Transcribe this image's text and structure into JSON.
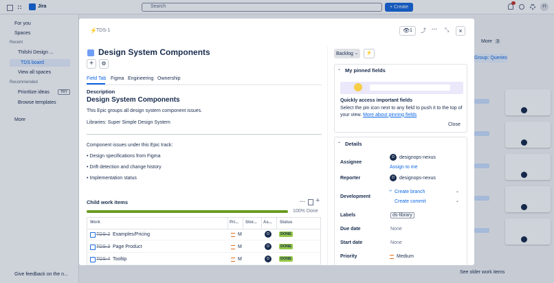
{
  "topbar": {
    "product": "Jira",
    "search": "Search",
    "create": "+ Create",
    "avatar": "TT"
  },
  "sidebar": {
    "items": [
      "For you",
      "Spaces",
      "Recent",
      "Thilshi Design ...",
      "TDS board",
      "View all spaces",
      "Recommended",
      "Prioritize ideas",
      "Browse templates",
      "More"
    ],
    "try_badge": "TRY",
    "feedback": "Give feedback on the n..."
  },
  "background": {
    "tab_more": "More",
    "tab_count": "3",
    "group": "Group: Queries",
    "older": "See older work items"
  },
  "modal": {
    "key": "TDS-1",
    "watchers": "1",
    "title": "Design System Components",
    "tabs": [
      "Field Tab",
      "Figma",
      "Engineering",
      "Ownership"
    ],
    "description": {
      "label": "Description",
      "heading": "Design System Components",
      "paragraphs": [
        "This Epic groups all design system component issues.",
        "Libraries: Super Simple Design System",
        "Component issues under this Epic track:"
      ],
      "bullets": [
        "• Design specifications from Figma",
        "• Drift detection and change history",
        "• Implementation status"
      ]
    },
    "child": {
      "title": "Child work items",
      "progress": "100% Done",
      "columns": [
        "Work",
        "Pri...",
        "Stor...",
        "As...",
        "Status"
      ],
      "rows": [
        [
          "TDS-2",
          "Examples/Pricing",
          "M",
          "D",
          "DONE"
        ],
        [
          "TDS-3",
          "Page Product",
          "M",
          "D",
          "DONE"
        ],
        [
          "TDS-4",
          "Tooltip",
          "M",
          "D",
          "DONE"
        ]
      ]
    },
    "status": "Backlog",
    "pinned": {
      "title": "My pinned fields",
      "heading": "Quickly access important fields",
      "text": "Select the pin icon next to any field to push it to the top of your view.",
      "link": "More about pinning fields",
      "close": "Close"
    },
    "details": {
      "title": "Details",
      "fields": [
        {
          "label": "Assignee",
          "value": "designops-nexus",
          "extra": "Assign to me"
        },
        {
          "label": "Reporter",
          "value": "designops-nexus"
        },
        {
          "label": "Development",
          "value": "Create branch",
          "extra": "Create commit"
        },
        {
          "label": "Labels",
          "value": "ds-library"
        },
        {
          "label": "Due date",
          "value": "None"
        },
        {
          "label": "Start date",
          "value": "None"
        },
        {
          "label": "Priority",
          "value": "Medium"
        }
      ],
      "avatar": "D"
    }
  }
}
